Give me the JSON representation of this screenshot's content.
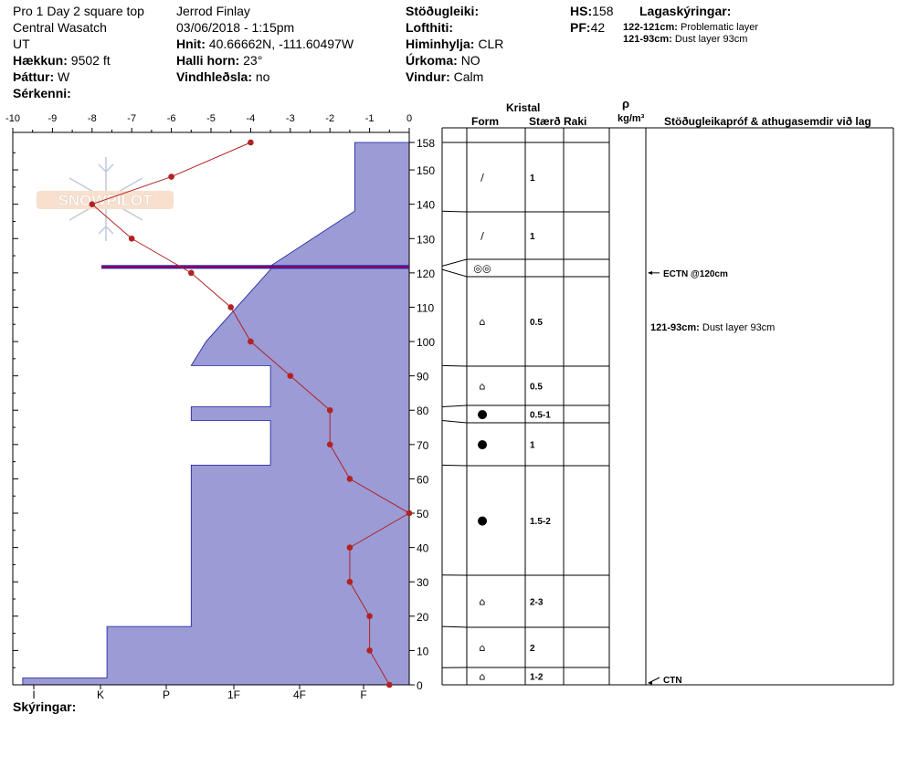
{
  "header": {
    "col1": [
      "Pro 1 Day 2 square top",
      "Central Wasatch",
      "UT"
    ],
    "elevation": {
      "label": "Hækkun:",
      "value": "9502 ft"
    },
    "aspect": {
      "label": "Þáttur:",
      "value": "W"
    },
    "features": {
      "label": "Sérkenni:",
      "value": ""
    },
    "observer": "Jerrod Finlay",
    "datetime": "03/06/2018 - 1:15pm",
    "coords": {
      "label": "Hnit:",
      "value": "40.66662N, -111.60497W"
    },
    "slope": {
      "label": "Halli horn:",
      "value": "23°"
    },
    "wind_loading": {
      "label": "Vindhleðsla:",
      "value": "no"
    },
    "stability": {
      "label": "Stöðugleiki:",
      "value": ""
    },
    "air_temp": {
      "label": "Lofthiti:",
      "value": ""
    },
    "sky": {
      "label": "Himinhylja:",
      "value": "CLR"
    },
    "precip": {
      "label": "Úrkoma:",
      "value": "NO"
    },
    "wind": {
      "label": "Vindur:",
      "value": "Calm"
    },
    "hs": {
      "label": "HS:",
      "value": "158"
    },
    "pf": {
      "label": "PF:",
      "value": "42"
    },
    "layer_notes_title": "Lagaskýringar:",
    "layer_notes": [
      {
        "label": "122-121cm:",
        "text": "Problematic layer"
      },
      {
        "label": "121-93cm:",
        "text": "Dust layer 93cm"
      }
    ]
  },
  "footer": {
    "notes_label": "Skýringar:"
  },
  "table": {
    "crystal_header": "Kristal",
    "form_header": "Form",
    "size_header": "Stærð",
    "moisture_header": "Raki",
    "density_symbol": "ρ",
    "density_unit": "kg/m³",
    "comments_header": "Stöðugleikapróf & athugasemdir við lag"
  },
  "logo_text": "SNOWPILOT",
  "colors": {
    "hardness_fill": "#9b9bd6",
    "hardness_stroke": "#1a1aa0",
    "temp_line": "#b22222",
    "layer_line": "#c0004a"
  },
  "chart_data": {
    "type": "snow_profile",
    "temp_axis": {
      "ticks": [
        "-10",
        "-9",
        "-8",
        "-7",
        "-6",
        "-5",
        "-4",
        "-3",
        "-2",
        "-1",
        "0"
      ],
      "range": [
        -10,
        0
      ]
    },
    "height_axis": {
      "ticks": [
        "158",
        "150",
        "140",
        "130",
        "120",
        "110",
        "100",
        "90",
        "80",
        "70",
        "60",
        "50",
        "40",
        "30",
        "20",
        "10",
        "0"
      ],
      "range": [
        0,
        158
      ]
    },
    "hardness_axis": {
      "labels": [
        "I",
        "K",
        "P",
        "1F",
        "4F",
        "F"
      ]
    },
    "temperature_profile": [
      {
        "h": 158,
        "t": -4.0
      },
      {
        "h": 148,
        "t": -6.0
      },
      {
        "h": 140,
        "t": -8.0
      },
      {
        "h": 130,
        "t": -7.0
      },
      {
        "h": 120,
        "t": -5.5
      },
      {
        "h": 110,
        "t": -4.5
      },
      {
        "h": 100,
        "t": -4.0
      },
      {
        "h": 90,
        "t": -3.0
      },
      {
        "h": 80,
        "t": -2.0
      },
      {
        "h": 70,
        "t": -2.0
      },
      {
        "h": 60,
        "t": -1.5
      },
      {
        "h": 50,
        "t": 0.0
      },
      {
        "h": 40,
        "t": -1.5
      },
      {
        "h": 30,
        "t": -1.5
      },
      {
        "h": 20,
        "t": -1.0
      },
      {
        "h": 10,
        "t": -1.0
      },
      {
        "h": 0,
        "t": -0.5
      }
    ],
    "hardness_profile": [
      [
        0,
        2,
        7.8
      ],
      [
        2,
        17,
        6.1
      ],
      [
        17,
        32,
        4.4
      ],
      [
        32,
        64,
        4.4
      ],
      [
        64,
        77,
        2.8
      ],
      [
        77,
        81,
        4.4
      ],
      [
        81,
        93,
        2.8
      ],
      [
        93,
        93,
        4.4
      ],
      [
        100,
        100,
        4.1
      ],
      [
        121,
        121,
        2.8
      ],
      [
        122,
        122,
        2.8
      ],
      [
        138,
        138,
        1.1
      ],
      [
        138,
        158,
        1.1
      ]
    ],
    "hardness_scale_comment": "values in hardness index from 0 (right edge) to 8 (left edge)",
    "layers": [
      {
        "top": 158,
        "bottom": 138,
        "form": "/",
        "size": "1"
      },
      {
        "top": 138,
        "bottom": 122,
        "form": "/",
        "size": "1"
      },
      {
        "top": 122,
        "bottom": 121,
        "form": "◎◎",
        "size": ""
      },
      {
        "top": 121,
        "bottom": 93,
        "form": "⌂",
        "size": "0.5"
      },
      {
        "top": 93,
        "bottom": 81,
        "form": "⌂",
        "size": "0.5"
      },
      {
        "top": 81,
        "bottom": 77,
        "form": "●",
        "size": "0.5-1"
      },
      {
        "top": 77,
        "bottom": 64,
        "form": "●",
        "size": "1"
      },
      {
        "top": 64,
        "bottom": 32,
        "form": "●",
        "size": "1.5-2"
      },
      {
        "top": 32,
        "bottom": 17,
        "form": "⌂",
        "size": "2-3"
      },
      {
        "top": 17,
        "bottom": 5,
        "form": "⌂",
        "size": "2"
      },
      {
        "top": 5,
        "bottom": 0,
        "form": "⌂",
        "size": "1-2"
      }
    ],
    "tests": [
      {
        "h": 120,
        "text": "ECTN @120cm"
      },
      {
        "h": 0,
        "text": "CTN"
      }
    ],
    "comments": [
      {
        "h": 105,
        "label": "121-93cm:",
        "text": "Dust layer 93cm"
      }
    ],
    "problem_layer": {
      "top": 122,
      "bottom": 121
    }
  }
}
